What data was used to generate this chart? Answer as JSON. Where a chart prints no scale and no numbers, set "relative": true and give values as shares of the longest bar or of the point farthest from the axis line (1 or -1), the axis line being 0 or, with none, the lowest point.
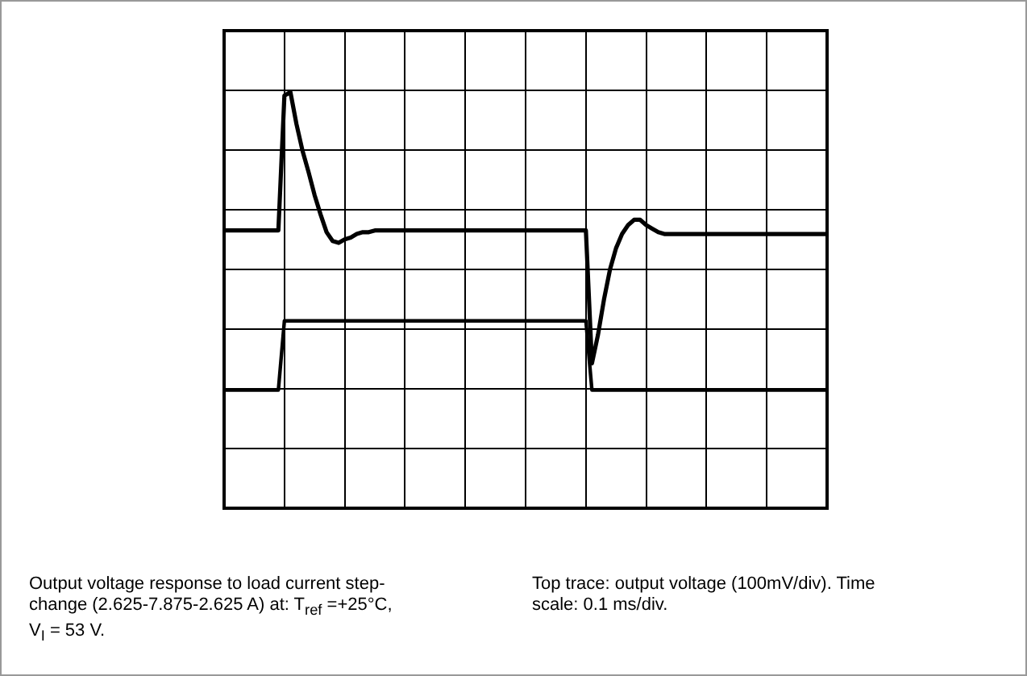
{
  "chart_data": {
    "type": "line",
    "relative": true,
    "grid": true,
    "legend": false,
    "categories": [
      null,
      null,
      null,
      null,
      null,
      null,
      null,
      null,
      null,
      null,
      null,
      null,
      null,
      null,
      null,
      null,
      null,
      null,
      null,
      null,
      null,
      null,
      null,
      null,
      null,
      null,
      null,
      null,
      null,
      null,
      null,
      null,
      null,
      null,
      null,
      null,
      null,
      null,
      null,
      null,
      null,
      null,
      null,
      null,
      null,
      null,
      null,
      null,
      null,
      null,
      null,
      null,
      null,
      null,
      null,
      null,
      null,
      null,
      null,
      null,
      null,
      null,
      null,
      null,
      null,
      null,
      null,
      null,
      null,
      null,
      null,
      null,
      null,
      null,
      null,
      null,
      null,
      null,
      null,
      null,
      null,
      null,
      null,
      null,
      null,
      null,
      null,
      null,
      null,
      null,
      null,
      null,
      null,
      null,
      null,
      null,
      null,
      null,
      null,
      null,
      null
    ],
    "series": [
      {
        "color": "#000000",
        "values": [
          0.22,
          0.22,
          0.22,
          0.22,
          0.22,
          0.22,
          0.22,
          0.22,
          0.22,
          0.22,
          0.98,
          1,
          0.82,
          0.67,
          0.55,
          0.42,
          0.31,
          0.21,
          0.16,
          0.15,
          0.17,
          0.18,
          0.2,
          0.21,
          0.21,
          0.22,
          0.22,
          0.22,
          0.22,
          0.22,
          0.22,
          0.22,
          0.22,
          0.22,
          0.22,
          0.22,
          0.22,
          0.22,
          0.22,
          0.22,
          0.22,
          0.22,
          0.22,
          0.22,
          0.22,
          0.22,
          0.22,
          0.22,
          0.22,
          0.22,
          0.22,
          0.22,
          0.22,
          0.22,
          0.22,
          0.22,
          0.22,
          0.22,
          0.22,
          0.22,
          0.22,
          -0.53,
          -0.37,
          -0.17,
          0,
          0.12,
          0.2,
          0.25,
          0.28,
          0.28,
          0.25,
          0.23,
          0.21,
          0.2,
          0.2,
          0.2,
          0.2,
          0.2,
          0.2,
          0.2,
          0.2,
          0.2,
          0.2,
          0.2,
          0.2,
          0.2,
          0.2,
          0.2,
          0.2,
          0.2,
          0.2,
          0.2,
          0.2,
          0.2,
          0.2,
          0.2,
          0.2,
          0.2,
          0.2,
          0.2,
          0.2
        ]
      },
      {
        "color": "#000000",
        "values": [
          -0.68,
          -0.68,
          -0.68,
          -0.68,
          -0.68,
          -0.68,
          -0.68,
          -0.68,
          -0.68,
          -0.68,
          -0.29,
          -0.29,
          -0.29,
          -0.29,
          -0.29,
          -0.29,
          -0.29,
          -0.29,
          -0.29,
          -0.29,
          -0.29,
          -0.29,
          -0.29,
          -0.29,
          -0.29,
          -0.29,
          -0.29,
          -0.29,
          -0.29,
          -0.29,
          -0.29,
          -0.29,
          -0.29,
          -0.29,
          -0.29,
          -0.29,
          -0.29,
          -0.29,
          -0.29,
          -0.29,
          -0.29,
          -0.29,
          -0.29,
          -0.29,
          -0.29,
          -0.29,
          -0.29,
          -0.29,
          -0.29,
          -0.29,
          -0.29,
          -0.29,
          -0.29,
          -0.29,
          -0.29,
          -0.29,
          -0.29,
          -0.29,
          -0.29,
          -0.29,
          -0.29,
          -0.68,
          -0.68,
          -0.68,
          -0.68,
          -0.68,
          -0.68,
          -0.68,
          -0.68,
          -0.68,
          -0.68,
          -0.68,
          -0.68,
          -0.68,
          -0.68,
          -0.68,
          -0.68,
          -0.68,
          -0.68,
          -0.68,
          -0.68,
          -0.68,
          -0.68,
          -0.68,
          -0.68,
          -0.68,
          -0.68,
          -0.68,
          -0.68,
          -0.68,
          -0.68,
          -0.68,
          -0.68,
          -0.68,
          -0.68,
          -0.68,
          -0.68,
          -0.68,
          -0.68,
          -0.68,
          -0.68
        ]
      }
    ],
    "annotations": [
      "Output voltage response to load current step-change (2.625-7.875-2.625 A) at: T$_{ref}$ =+25°C, V$_{I}$ = 53 V.",
      "Top trace: output voltage (100mV/div). Time scale: 0.1 ms/div."
    ]
  }
}
